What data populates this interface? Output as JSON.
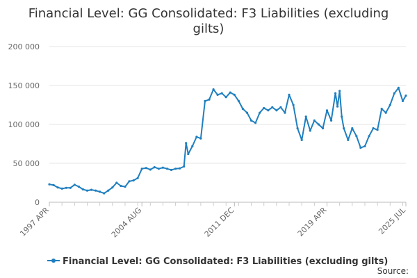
{
  "chart_data": {
    "type": "line",
    "title_lines": [
      "Financial Level: GG Consolidated: F3 Liabilities (excluding",
      "gilts)"
    ],
    "xlabel": "",
    "ylabel": "",
    "x_tick_labels": [
      "1997 APR",
      "2004 AUG",
      "2011 DEC",
      "2019 APR",
      "2025 JUL"
    ],
    "x_tick_dates": [
      "1997-04",
      "2004-08",
      "2011-12",
      "2019-04",
      "2025-07"
    ],
    "y_tick_labels": [
      "0",
      "50 000",
      "100 000",
      "150 000",
      "200 000"
    ],
    "y_ticks": [
      0,
      50000,
      100000,
      150000,
      200000
    ],
    "xlim": [
      "1997-04",
      "2025-07"
    ],
    "ylim": [
      0,
      200000
    ],
    "grid": "horizontal",
    "legend_position": "bottom",
    "series": [
      {
        "name": "Financial Level: GG Consolidated: F3 Liabilities (excluding gilts)",
        "color": "#1f7fbf",
        "x": [
          "1997-04",
          "1997-08",
          "1997-12",
          "1998-04",
          "1998-08",
          "1998-12",
          "1999-04",
          "1999-08",
          "1999-12",
          "2000-04",
          "2000-08",
          "2000-12",
          "2001-04",
          "2001-08",
          "2001-12",
          "2002-04",
          "2002-08",
          "2002-12",
          "2003-04",
          "2003-08",
          "2003-12",
          "2004-04",
          "2004-08",
          "2004-12",
          "2005-04",
          "2005-08",
          "2005-12",
          "2006-04",
          "2006-08",
          "2006-12",
          "2007-04",
          "2007-08",
          "2007-12",
          "2008-02",
          "2008-04",
          "2008-08",
          "2008-12",
          "2009-04",
          "2009-08",
          "2009-12",
          "2010-04",
          "2010-08",
          "2010-12",
          "2011-04",
          "2011-08",
          "2011-12",
          "2012-04",
          "2012-08",
          "2012-12",
          "2013-04",
          "2013-08",
          "2013-12",
          "2014-04",
          "2014-08",
          "2014-12",
          "2015-04",
          "2015-08",
          "2015-12",
          "2016-04",
          "2016-08",
          "2016-12",
          "2017-04",
          "2017-08",
          "2017-12",
          "2018-04",
          "2018-08",
          "2018-12",
          "2019-04",
          "2019-08",
          "2019-12",
          "2020-02",
          "2020-04",
          "2020-06",
          "2020-08",
          "2020-12",
          "2021-04",
          "2021-08",
          "2021-12",
          "2022-04",
          "2022-08",
          "2022-12",
          "2023-04",
          "2023-08",
          "2023-12",
          "2024-04",
          "2024-08",
          "2024-12",
          "2025-04",
          "2025-07"
        ],
        "values": [
          23000,
          22000,
          19000,
          17500,
          18500,
          18500,
          22500,
          20000,
          16500,
          15000,
          16000,
          15000,
          13500,
          11500,
          15000,
          19000,
          25000,
          21000,
          20000,
          27000,
          28000,
          31000,
          43000,
          44000,
          42000,
          45000,
          43000,
          44500,
          43000,
          41500,
          43000,
          43500,
          46000,
          76000,
          62000,
          72000,
          84000,
          82000,
          130000,
          132000,
          145000,
          138000,
          140000,
          135000,
          141000,
          138000,
          130000,
          120000,
          115000,
          105000,
          102000,
          115000,
          121000,
          118000,
          122000,
          118000,
          122000,
          115000,
          138000,
          125000,
          95000,
          80000,
          110000,
          92000,
          105000,
          100000,
          95000,
          118000,
          105000,
          140000,
          123000,
          143000,
          110000,
          95000,
          80000,
          95000,
          85000,
          70000,
          72000,
          85000,
          95000,
          93000,
          120000,
          115000,
          125000,
          140000,
          147000,
          130000,
          137000
        ]
      }
    ],
    "source_label": "Source:"
  }
}
